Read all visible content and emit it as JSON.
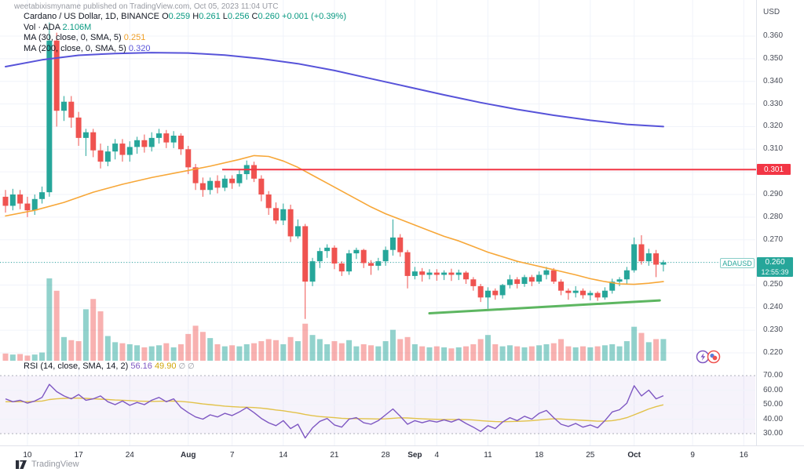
{
  "watermark": "weetabixismyname published on TradingView.com, Oct 05, 2023 11:04 UTC",
  "legend": {
    "symbol_line": {
      "title": "Cardano / US Dollar, 1D, BINANCE",
      "o_label": "O",
      "o": "0.259",
      "h_label": "H",
      "h": "0.261",
      "l_label": "L",
      "l": "0.256",
      "c_label": "C",
      "c": "0.260",
      "change": "+0.001 (+0.39%)"
    },
    "volume_line": {
      "label": "Vol · ADA",
      "value": "2.106M"
    },
    "ma30_line": {
      "label": "MA (30, close, 0, SMA, 5)",
      "value": "0.251"
    },
    "ma200_line": {
      "label": "MA (200, close, 0, SMA, 5)",
      "value": "0.320"
    },
    "rsi_line": {
      "label": "RSI (14, close, SMA, 14, 2)",
      "value1": "56.16",
      "value2": "49.90",
      "extra": "∅ ∅"
    }
  },
  "axis": {
    "currency": "USD",
    "price_ticks": [
      "0.360",
      "0.350",
      "0.340",
      "0.330",
      "0.320",
      "0.310",
      "0.300",
      "0.290",
      "0.280",
      "0.270",
      "0.260",
      "0.250",
      "0.240",
      "0.230",
      "0.220"
    ],
    "rsi_ticks": [
      "70.00",
      "60.00",
      "50.00",
      "40.00",
      "30.00"
    ],
    "time_ticks": [
      {
        "label": "10",
        "i": 3
      },
      {
        "label": "17",
        "i": 10
      },
      {
        "label": "24",
        "i": 17
      },
      {
        "label": "Aug",
        "i": 25,
        "bold": true
      },
      {
        "label": "7",
        "i": 31
      },
      {
        "label": "14",
        "i": 38
      },
      {
        "label": "21",
        "i": 45
      },
      {
        "label": "28",
        "i": 52
      },
      {
        "label": "Sep",
        "i": 56,
        "bold": true
      },
      {
        "label": "4",
        "i": 59
      },
      {
        "label": "11",
        "i": 66
      },
      {
        "label": "18",
        "i": 73
      },
      {
        "label": "25",
        "i": 80
      },
      {
        "label": "Oct",
        "i": 86,
        "bold": true
      },
      {
        "label": "9",
        "i": 94
      },
      {
        "label": "16",
        "i": 101
      }
    ]
  },
  "price_labels": {
    "alert_level": "0.301",
    "last_price": "0.260",
    "countdown": "12:55:39",
    "symbol_chip": "ADAUSD"
  },
  "footer": {
    "logo_text": "TradingView"
  },
  "colors": {
    "up": "#26a69a",
    "down": "#ef5350",
    "vol_up": "rgba(38,166,154,0.5)",
    "vol_down": "rgba(239,83,80,0.45)",
    "ma30": "#f7a738",
    "ma200": "#5753d9",
    "alert_line": "#f23645",
    "trendline": "#4caf50",
    "last_line": "#26a69a",
    "rsi": "#7e57c2",
    "rsi_sma": "#e2c24a",
    "rsi_band": "rgba(126,87,194,0.07)",
    "grid": "#f0f3fa",
    "band_dash": "#9b9eab"
  },
  "chart_data": {
    "type": "candlestick",
    "symbol": "ADAUSD",
    "interval": "1D",
    "price_range": [
      0.215,
      0.368
    ],
    "rsi_range": [
      25,
      75
    ],
    "alert_price": 0.301,
    "last_price": 0.26,
    "trendline": {
      "x1_index": 58,
      "price1": 0.2375,
      "x2_index": 89.5,
      "price2": 0.2432
    },
    "candles": [
      [
        0.289,
        0.292,
        0.282,
        0.285
      ],
      [
        0.285,
        0.2925,
        0.283,
        0.29
      ],
      [
        0.29,
        0.292,
        0.2835,
        0.286
      ],
      [
        0.286,
        0.289,
        0.28,
        0.283
      ],
      [
        0.283,
        0.29,
        0.281,
        0.288
      ],
      [
        0.288,
        0.2935,
        0.286,
        0.291
      ],
      [
        0.291,
        0.366,
        0.289,
        0.358
      ],
      [
        0.358,
        0.3615,
        0.32,
        0.327
      ],
      [
        0.327,
        0.3335,
        0.3225,
        0.331
      ],
      [
        0.331,
        0.3335,
        0.3195,
        0.324
      ],
      [
        0.324,
        0.3265,
        0.3115,
        0.315
      ],
      [
        0.315,
        0.319,
        0.307,
        0.3175
      ],
      [
        0.3175,
        0.319,
        0.3065,
        0.3095
      ],
      [
        0.3095,
        0.3125,
        0.3015,
        0.3045
      ],
      [
        0.3045,
        0.3115,
        0.3025,
        0.309
      ],
      [
        0.309,
        0.3145,
        0.3055,
        0.3125
      ],
      [
        0.3125,
        0.3145,
        0.3045,
        0.3075
      ],
      [
        0.3075,
        0.3135,
        0.3045,
        0.311
      ],
      [
        0.311,
        0.3155,
        0.308,
        0.314
      ],
      [
        0.314,
        0.3165,
        0.3085,
        0.311
      ],
      [
        0.311,
        0.3175,
        0.309,
        0.315
      ],
      [
        0.315,
        0.319,
        0.3125,
        0.317
      ],
      [
        0.317,
        0.3185,
        0.3105,
        0.313
      ],
      [
        0.313,
        0.318,
        0.3105,
        0.316
      ],
      [
        0.316,
        0.317,
        0.3075,
        0.31
      ],
      [
        0.31,
        0.3115,
        0.299,
        0.302
      ],
      [
        0.302,
        0.3035,
        0.292,
        0.295
      ],
      [
        0.295,
        0.2975,
        0.289,
        0.292
      ],
      [
        0.292,
        0.2975,
        0.29,
        0.296
      ],
      [
        0.296,
        0.2985,
        0.2905,
        0.293
      ],
      [
        0.293,
        0.2985,
        0.2915,
        0.297
      ],
      [
        0.297,
        0.2985,
        0.2925,
        0.295
      ],
      [
        0.295,
        0.301,
        0.2935,
        0.299
      ],
      [
        0.299,
        0.305,
        0.2965,
        0.303
      ],
      [
        0.303,
        0.3045,
        0.2955,
        0.297
      ],
      [
        0.297,
        0.2985,
        0.287,
        0.29
      ],
      [
        0.29,
        0.2915,
        0.281,
        0.284
      ],
      [
        0.284,
        0.2865,
        0.277,
        0.2785
      ],
      [
        0.2785,
        0.286,
        0.2765,
        0.2835
      ],
      [
        0.2835,
        0.2855,
        0.269,
        0.2715
      ],
      [
        0.2715,
        0.279,
        0.2705,
        0.276
      ],
      [
        0.276,
        0.277,
        0.235,
        0.2515
      ],
      [
        0.2515,
        0.262,
        0.2495,
        0.2605
      ],
      [
        0.2605,
        0.2665,
        0.2575,
        0.265
      ],
      [
        0.265,
        0.268,
        0.262,
        0.2665
      ],
      [
        0.2665,
        0.2675,
        0.257,
        0.2595
      ],
      [
        0.2595,
        0.2605,
        0.254,
        0.256
      ],
      [
        0.256,
        0.2655,
        0.2545,
        0.264
      ],
      [
        0.264,
        0.2665,
        0.2615,
        0.2655
      ],
      [
        0.2655,
        0.266,
        0.2575,
        0.2597
      ],
      [
        0.2597,
        0.261,
        0.2545,
        0.2585
      ],
      [
        0.2585,
        0.262,
        0.2565,
        0.2605
      ],
      [
        0.2605,
        0.267,
        0.2585,
        0.2655
      ],
      [
        0.2655,
        0.279,
        0.263,
        0.271
      ],
      [
        0.271,
        0.2725,
        0.2625,
        0.2645
      ],
      [
        0.2645,
        0.2655,
        0.2485,
        0.254
      ],
      [
        0.254,
        0.258,
        0.2525,
        0.256
      ],
      [
        0.256,
        0.2575,
        0.2515,
        0.2545
      ],
      [
        0.2545,
        0.257,
        0.2525,
        0.2555
      ],
      [
        0.2555,
        0.257,
        0.2519,
        0.2545
      ],
      [
        0.2545,
        0.2565,
        0.2522,
        0.2555
      ],
      [
        0.2555,
        0.2572,
        0.2518,
        0.2545
      ],
      [
        0.2545,
        0.2568,
        0.2522,
        0.2555
      ],
      [
        0.2555,
        0.2562,
        0.2505,
        0.2525
      ],
      [
        0.2525,
        0.2535,
        0.2475,
        0.2495
      ],
      [
        0.2495,
        0.2505,
        0.2425,
        0.2445
      ],
      [
        0.2445,
        0.249,
        0.2395,
        0.2475
      ],
      [
        0.2475,
        0.2485,
        0.2435,
        0.2455
      ],
      [
        0.2455,
        0.2505,
        0.244,
        0.25
      ],
      [
        0.25,
        0.2545,
        0.2485,
        0.2525
      ],
      [
        0.2525,
        0.2535,
        0.2485,
        0.2505
      ],
      [
        0.2505,
        0.2545,
        0.2492,
        0.2535
      ],
      [
        0.2535,
        0.2545,
        0.2495,
        0.2515
      ],
      [
        0.2515,
        0.256,
        0.2505,
        0.2545
      ],
      [
        0.2545,
        0.258,
        0.2525,
        0.2565
      ],
      [
        0.2565,
        0.2575,
        0.2505,
        0.2515
      ],
      [
        0.2515,
        0.2525,
        0.2455,
        0.2475
      ],
      [
        0.2475,
        0.2485,
        0.2435,
        0.2465
      ],
      [
        0.2465,
        0.2495,
        0.2445,
        0.2475
      ],
      [
        0.2475,
        0.2485,
        0.244,
        0.2455
      ],
      [
        0.2455,
        0.2475,
        0.2432,
        0.2465
      ],
      [
        0.2465,
        0.2472,
        0.243,
        0.2445
      ],
      [
        0.2445,
        0.249,
        0.2435,
        0.2475
      ],
      [
        0.2475,
        0.2528,
        0.2462,
        0.2515
      ],
      [
        0.2515,
        0.2535,
        0.2495,
        0.2525
      ],
      [
        0.2525,
        0.258,
        0.2505,
        0.2565
      ],
      [
        0.2565,
        0.271,
        0.2555,
        0.268
      ],
      [
        0.268,
        0.272,
        0.259,
        0.2605
      ],
      [
        0.2605,
        0.266,
        0.2585,
        0.264
      ],
      [
        0.264,
        0.2655,
        0.2535,
        0.259
      ],
      [
        0.259,
        0.261,
        0.256,
        0.26
      ]
    ],
    "volumes_m": [
      0.7,
      0.6,
      0.65,
      0.5,
      0.6,
      0.8,
      8.0,
      6.8,
      2.3,
      2.0,
      1.9,
      5.0,
      6.0,
      4.8,
      2.4,
      1.8,
      1.7,
      1.6,
      1.5,
      1.3,
      1.4,
      1.5,
      1.7,
      1.3,
      1.6,
      2.6,
      3.4,
      2.8,
      2.2,
      1.6,
      1.4,
      1.5,
      1.4,
      1.6,
      1.7,
      1.9,
      2.1,
      2.0,
      1.6,
      2.3,
      1.9,
      3.6,
      2.5,
      2.1,
      1.6,
      1.9,
      1.7,
      2.0,
      1.4,
      1.6,
      1.5,
      1.4,
      1.9,
      3.0,
      2.1,
      2.3,
      1.6,
      1.4,
      1.3,
      1.4,
      1.3,
      1.2,
      1.3,
      1.4,
      1.6,
      2.1,
      2.5,
      1.6,
      1.4,
      1.5,
      1.4,
      1.3,
      1.4,
      1.5,
      1.6,
      1.7,
      2.1,
      1.4,
      1.3,
      1.4,
      1.3,
      1.4,
      1.5,
      1.6,
      1.4,
      1.9,
      3.3,
      2.7,
      1.8,
      2.1,
      2.106
    ],
    "ma200_points": [
      [
        0,
        0.3465
      ],
      [
        5,
        0.3495
      ],
      [
        10,
        0.3515
      ],
      [
        15,
        0.3523
      ],
      [
        20,
        0.3527
      ],
      [
        25,
        0.3525
      ],
      [
        30,
        0.3516
      ],
      [
        35,
        0.35
      ],
      [
        40,
        0.3478
      ],
      [
        45,
        0.3448
      ],
      [
        50,
        0.3412
      ],
      [
        55,
        0.3376
      ],
      [
        60,
        0.334
      ],
      [
        65,
        0.3306
      ],
      [
        70,
        0.3276
      ],
      [
        75,
        0.325
      ],
      [
        80,
        0.3228
      ],
      [
        85,
        0.321
      ],
      [
        90,
        0.32
      ]
    ],
    "ma30_points": [
      [
        0,
        0.2805
      ],
      [
        4,
        0.283
      ],
      [
        8,
        0.2865
      ],
      [
        12,
        0.291
      ],
      [
        16,
        0.2945
      ],
      [
        20,
        0.2975
      ],
      [
        24,
        0.3
      ],
      [
        28,
        0.3025
      ],
      [
        32,
        0.3055
      ],
      [
        34,
        0.3072
      ],
      [
        36,
        0.3068
      ],
      [
        38,
        0.3048
      ],
      [
        40,
        0.302
      ],
      [
        42,
        0.2985
      ],
      [
        44,
        0.295
      ],
      [
        46,
        0.2915
      ],
      [
        48,
        0.288
      ],
      [
        50,
        0.2845
      ],
      [
        52,
        0.2815
      ],
      [
        54,
        0.279
      ],
      [
        56,
        0.2765
      ],
      [
        58,
        0.274
      ],
      [
        60,
        0.2715
      ],
      [
        62,
        0.2695
      ],
      [
        64,
        0.267
      ],
      [
        66,
        0.2645
      ],
      [
        68,
        0.2625
      ],
      [
        70,
        0.2605
      ],
      [
        72,
        0.259
      ],
      [
        74,
        0.2575
      ],
      [
        76,
        0.256
      ],
      [
        78,
        0.2545
      ],
      [
        80,
        0.2528
      ],
      [
        82,
        0.2515
      ],
      [
        84,
        0.2505
      ],
      [
        86,
        0.2503
      ],
      [
        88,
        0.2508
      ],
      [
        90,
        0.2515
      ]
    ],
    "rsi": [
      54,
      52,
      53,
      51,
      52.5,
      55,
      64,
      59,
      56,
      54,
      57,
      53,
      54,
      56,
      52,
      50,
      52.5,
      49.5,
      51.5,
      50,
      53,
      55,
      52,
      54,
      48,
      44.5,
      41.5,
      40,
      43,
      41.5,
      44,
      42.5,
      45,
      48,
      44.5,
      40.5,
      37.5,
      35.5,
      39,
      33.5,
      36.5,
      27,
      34,
      38.5,
      40.5,
      36,
      34.5,
      40,
      41,
      37.5,
      36.5,
      39,
      43,
      47,
      42,
      36.5,
      39,
      37.5,
      39,
      38,
      39.5,
      38,
      40,
      37,
      34.5,
      31.5,
      35.5,
      33.5,
      38,
      41,
      39,
      42,
      40,
      44,
      46,
      41,
      36.5,
      35,
      37,
      34.5,
      36,
      34,
      39,
      45,
      46.5,
      51,
      63,
      56,
      60,
      54,
      56.16
    ],
    "rsi_sma": [
      52,
      52,
      52,
      52,
      52.2,
      52.5,
      53.5,
      54,
      54.3,
      54.5,
      54.5,
      54.3,
      54,
      53.8,
      53.5,
      53.2,
      53,
      52.8,
      52.5,
      52.3,
      52.2,
      52.3,
      52.4,
      52.5,
      52.2,
      51.8,
      51.2,
      50.5,
      50,
      49.5,
      49,
      48.6,
      48.3,
      48.2,
      48,
      47.6,
      47,
      46.3,
      45.8,
      45,
      44.2,
      43.2,
      42.4,
      41.8,
      41.4,
      41,
      40.6,
      40.4,
      40.4,
      40.3,
      40.2,
      40.1,
      40.2,
      40.6,
      40.9,
      40.8,
      40.5,
      40.2,
      40,
      39.9,
      39.8,
      39.8,
      39.8,
      39.7,
      39.4,
      39,
      38.6,
      38.3,
      38.2,
      38.3,
      38.5,
      38.7,
      39,
      39.4,
      39.9,
      40.2,
      40.1,
      39.8,
      39.5,
      39.2,
      38.9,
      38.6,
      38.6,
      39,
      39.8,
      41,
      43,
      45,
      47,
      48.6,
      49.9
    ],
    "rsi_band": [
      30,
      70
    ]
  }
}
